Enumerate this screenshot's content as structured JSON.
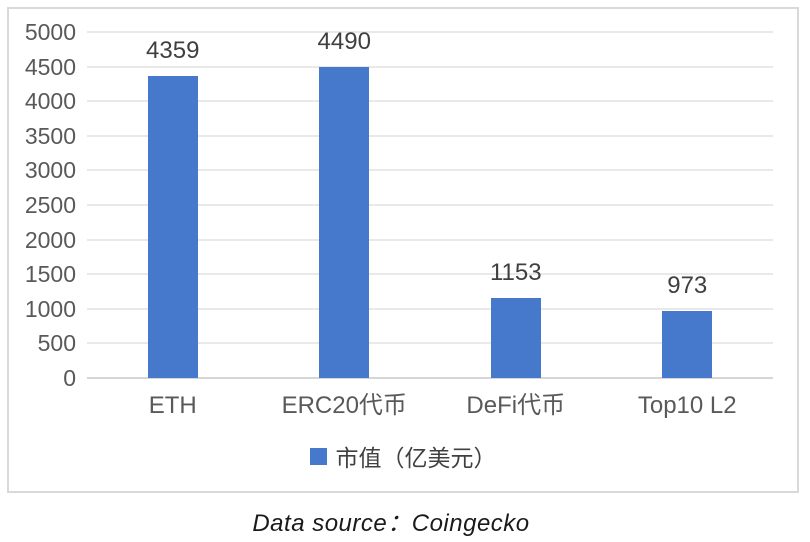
{
  "chart_data": {
    "type": "bar",
    "categories": [
      "ETH",
      "ERC20代币",
      "DeFi代币",
      "Top10 L2"
    ],
    "values": [
      4359,
      4490,
      1153,
      973
    ],
    "series": [
      {
        "name": "市值（亿美元）",
        "values": [
          4359,
          4490,
          1153,
          973
        ]
      }
    ],
    "data_labels": [
      "4359",
      "4490",
      "1153",
      "973"
    ],
    "title": "",
    "xlabel": "",
    "ylabel": "",
    "ylim": [
      0,
      5000
    ],
    "ytick_step": 500,
    "ytick_labels": [
      "0",
      "500",
      "1000",
      "1500",
      "2000",
      "2500",
      "3000",
      "3500",
      "4000",
      "4500",
      "5000"
    ],
    "grid": "horizontal",
    "legend_position": "bottom",
    "bar_color": "#4678CB"
  },
  "legend": {
    "label": "市值（亿美元）",
    "marker_color": "#4678CB"
  },
  "caption": "Data source：Coingecko",
  "colors": {
    "bar": "#4678CB",
    "gridline": "#E9E9E9",
    "axis_line": "#D6D6D6",
    "frame_border": "#D9D9D9",
    "tick_text": "#595959",
    "value_text": "#3F3F3F",
    "legend_text": "#404040",
    "caption_text": "#1A1A1A"
  }
}
